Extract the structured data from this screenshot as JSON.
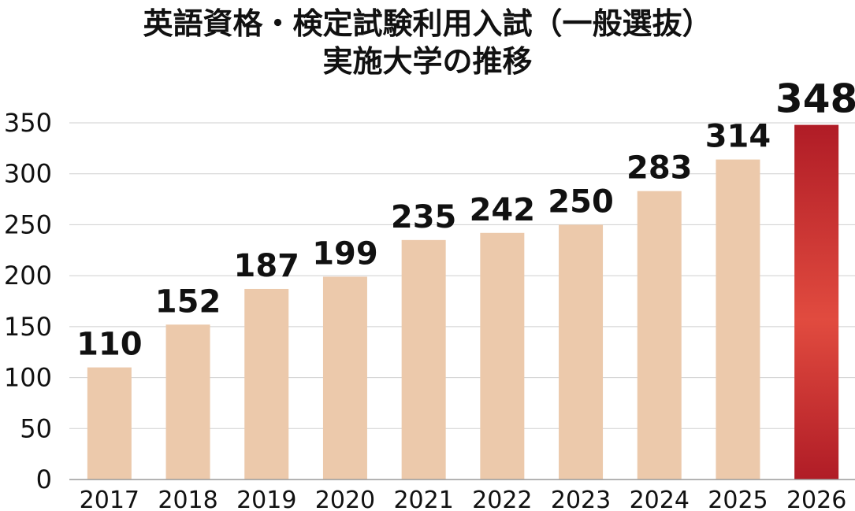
{
  "chart_data": {
    "type": "bar",
    "title_lines": [
      "英語資格・検定試験利用入試（一般選抜）",
      "実施大学の推移"
    ],
    "categories": [
      "2017",
      "2018",
      "2019",
      "2020",
      "2021",
      "2022",
      "2023",
      "2024",
      "2025",
      "2026"
    ],
    "values": [
      110,
      152,
      187,
      199,
      235,
      242,
      250,
      283,
      314,
      348
    ],
    "data_labels": [
      "110",
      "152",
      "187",
      "199",
      "235",
      "242",
      "250",
      "283",
      "314",
      "348"
    ],
    "ylim": [
      0,
      350
    ],
    "yticks": [
      0,
      50,
      100,
      150,
      200,
      250,
      300,
      350
    ],
    "ytick_labels": [
      "0",
      "50",
      "100",
      "150",
      "200",
      "250",
      "300",
      "350"
    ],
    "grid": true,
    "colors": {
      "bar": "#ecc9ab",
      "highlight_top": "#b01c26",
      "highlight_mid": "#e14b3f",
      "highlight_label": "#b71c2a",
      "grid": "#cfcfcf",
      "axis": "#9a9a9a"
    },
    "highlight_index": 9
  }
}
